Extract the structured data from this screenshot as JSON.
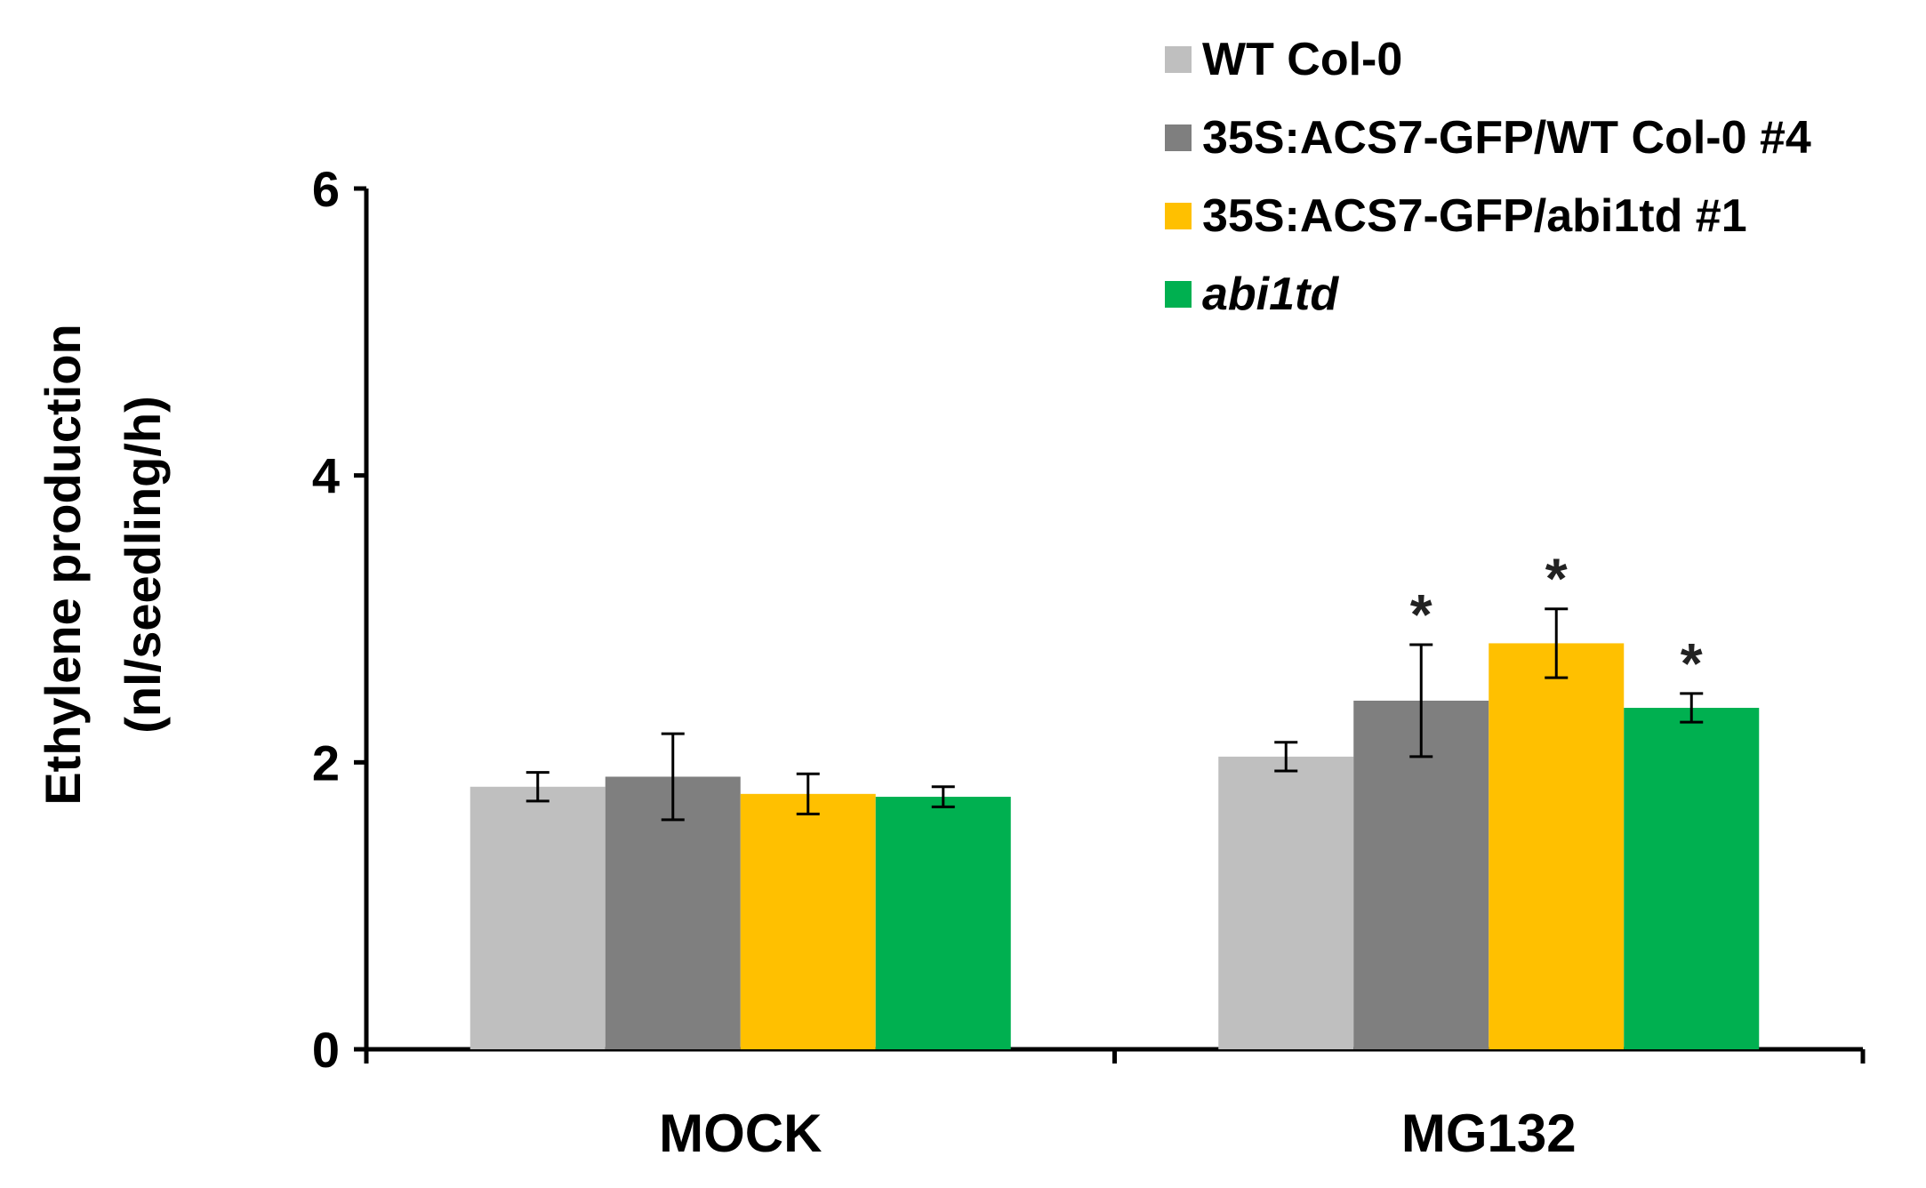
{
  "chart_data": {
    "type": "bar",
    "title": "",
    "xlabel": "",
    "ylabel_line1": "Ethylene production",
    "ylabel_line2": "(nl/seedling/h)",
    "ylim": [
      0,
      6
    ],
    "yticks": [
      "0",
      "2",
      "4",
      "6"
    ],
    "categories": [
      "MOCK",
      "MG132"
    ],
    "legend_position": "top-right",
    "series": [
      {
        "name": "WT Col-0",
        "italic": false,
        "color": "#bfbfbf",
        "values": [
          1.83,
          2.04
        ],
        "errors": [
          0.1,
          0.1
        ],
        "significance": [
          "",
          ""
        ]
      },
      {
        "name": "35S:ACS7-GFP/WT Col-0 #4",
        "italic": false,
        "color": "#7f7f7f",
        "values": [
          1.9,
          2.43
        ],
        "errors": [
          0.3,
          0.39
        ],
        "significance": [
          "",
          "*"
        ]
      },
      {
        "name": "35S:ACS7-GFP/abi1td #1",
        "italic": false,
        "color": "#ffc000",
        "values": [
          1.78,
          2.83
        ],
        "errors": [
          0.14,
          0.24
        ],
        "significance": [
          "",
          "*"
        ]
      },
      {
        "name": "abi1td",
        "italic": true,
        "color": "#00b050",
        "values": [
          1.76,
          2.38
        ],
        "errors": [
          0.07,
          0.1
        ],
        "significance": [
          "",
          "*"
        ]
      }
    ]
  }
}
